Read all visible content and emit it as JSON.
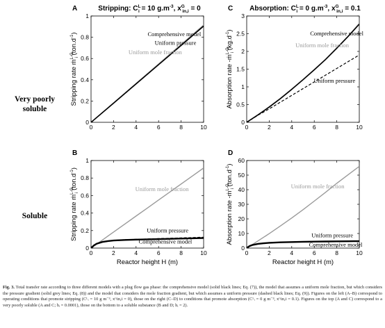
{
  "row_labels": {
    "top": [
      "Very poorly",
      "soluble"
    ],
    "bottom": [
      "Soluble"
    ]
  },
  "caption": {
    "lead": "Fig. 3.",
    "text": "Total transfer rate according to three different models with a plug flow gas phase: the comprehensive model (solid black lines; Eq. (7)), the model that assumes a uniform mole fraction, but which considers the pressure gradient (solid grey lines; Eq. (8)) and the model that considers the mole fraction gradient, but which assumes a uniform pressure (dashed black lines; Eq. (9)). Figures on the left (A–B) correspond to operating conditions that promote stripping (Cᴸᵢ = 10 g m⁻³, xᴳin,i = 0), those on the right (C–D) to conditions that promote absorption (Cᴸᵢ = 0 g m⁻³, xᴳin,i = 0.1). Figures on the top (A and C) correspond to a very poorly soluble (A and C; hᵢ = 0.0001), those on the bottom to a soluble substance (B and D; hᵢ = 2)."
  },
  "colors": {
    "comprehensive": "#000000",
    "mole_fraction": "#9a9a9a",
    "pressure": "#000000"
  },
  "chart_data": [
    {
      "id": "A",
      "type": "line",
      "letter": "A",
      "title_main": "Stripping: C",
      "title_sub1": "L",
      "title_sub1b": "i",
      "title_mid": " = 10 g.m",
      "title_exp": "-3",
      "title_mid2": ", x",
      "title_sub2": "G",
      "title_sub2b": "in,i",
      "title_end": " = 0",
      "xlabel": "",
      "ylabel": "Stripping rate  ṁ",
      "ylabel_sup": "L-G",
      "ylabel_sub": "i",
      "ylabel_unit": "  (ton.d",
      "ylabel_unit_exp": "-1",
      "ylabel_close": ")",
      "xlim": [
        0,
        10
      ],
      "ylim": [
        0,
        1
      ],
      "xticks": [
        0,
        2,
        4,
        6,
        8,
        10
      ],
      "yticks": [
        0,
        0.2,
        0.4,
        0.6,
        0.8,
        1
      ],
      "ytick_labels": [
        "0",
        "0.2",
        "0.4",
        "0.6",
        "0.8",
        "1"
      ],
      "x": [
        0,
        2,
        4,
        6,
        8,
        10
      ],
      "series": [
        {
          "name": "Uniform mole fraction",
          "style": "grey-solid",
          "values": [
            0,
            0.183,
            0.366,
            0.549,
            0.732,
            0.915
          ]
        },
        {
          "name": "Comprehensive model",
          "style": "black-solid",
          "values": [
            0,
            0.18,
            0.361,
            0.542,
            0.723,
            0.905
          ]
        },
        {
          "name": "Uniform pressure",
          "style": "black-dashed",
          "values": [
            0,
            0.18,
            0.361,
            0.542,
            0.723,
            0.905
          ]
        }
      ],
      "annotations": [
        {
          "text": "Comprehensive model",
          "color": "black",
          "x": 7.4,
          "y": 0.81
        },
        {
          "text": "Uniform pressure",
          "color": "black",
          "x": 7.5,
          "y": 0.73
        },
        {
          "text": "Uniform mole fraction",
          "color": "grey",
          "x": 5.7,
          "y": 0.64
        }
      ]
    },
    {
      "id": "C",
      "type": "line",
      "letter": "C",
      "title_main": "Absorption: C",
      "title_sub1": "L",
      "title_sub1b": "i",
      "title_mid": " = 0 g.m",
      "title_exp": "-3",
      "title_mid2": ", x",
      "title_sub2": "G",
      "title_sub2b": "in,i",
      "title_end": " = 0.1",
      "xlabel": "",
      "ylabel": "Absorption rate  -ṁ",
      "ylabel_sup": "L-G",
      "ylabel_sub": "i",
      "ylabel_unit": "  (kg.d",
      "ylabel_unit_exp": "-1",
      "ylabel_close": ")",
      "xlim": [
        0,
        10
      ],
      "ylim": [
        0,
        3
      ],
      "xticks": [
        0,
        2,
        4,
        6,
        8,
        10
      ],
      "yticks": [
        0,
        0.5,
        1,
        1.5,
        2,
        2.5,
        3
      ],
      "ytick_labels": [
        "0",
        "0.5",
        "1",
        "1.5",
        "2",
        "2.5",
        "3"
      ],
      "x": [
        0,
        1,
        2,
        3,
        4,
        5,
        6,
        7,
        8,
        9,
        10
      ],
      "series": [
        {
          "name": "Uniform mole fraction",
          "style": "grey-solid",
          "values": [
            0,
            0.21,
            0.44,
            0.68,
            0.94,
            1.21,
            1.49,
            1.78,
            2.1,
            2.43,
            2.79
          ]
        },
        {
          "name": "Comprehensive model",
          "style": "black-solid",
          "values": [
            0,
            0.21,
            0.43,
            0.67,
            0.93,
            1.2,
            1.48,
            1.77,
            2.09,
            2.42,
            2.77
          ]
        },
        {
          "name": "Uniform pressure",
          "style": "black-dashed",
          "values": [
            0,
            0.2,
            0.38,
            0.57,
            0.76,
            0.95,
            1.14,
            1.33,
            1.52,
            1.71,
            1.9
          ]
        }
      ],
      "annotations": [
        {
          "text": "Comprehensive model",
          "color": "black",
          "x": 8.0,
          "y": 2.45
        },
        {
          "text": "Uniform mole fraction",
          "color": "grey",
          "x": 6.7,
          "y": 2.12
        },
        {
          "text": "Uniform pressure",
          "color": "black",
          "x": 7.8,
          "y": 1.12
        }
      ]
    },
    {
      "id": "B",
      "type": "line",
      "letter": "B",
      "xlabel": "Reactor height H (m)",
      "ylabel": "Stripping rate  ṁ",
      "ylabel_sup": "L-G",
      "ylabel_sub": "i",
      "ylabel_unit": "  (ton.d",
      "ylabel_unit_exp": "-1",
      "ylabel_close": ")",
      "xlim": [
        0,
        10
      ],
      "ylim": [
        0,
        1
      ],
      "xticks": [
        0,
        2,
        4,
        6,
        8,
        10
      ],
      "yticks": [
        0,
        0.2,
        0.4,
        0.6,
        0.8,
        1
      ],
      "ytick_labels": [
        "0",
        "0.2",
        "0.4",
        "0.6",
        "0.8",
        "1"
      ],
      "x": [
        0,
        0.25,
        0.5,
        1,
        1.5,
        2,
        3,
        4,
        5,
        6,
        7,
        8,
        9,
        10
      ],
      "series": [
        {
          "name": "Uniform mole fraction",
          "style": "grey-solid",
          "values": [
            0,
            0.023,
            0.046,
            0.091,
            0.137,
            0.183,
            0.274,
            0.366,
            0.457,
            0.549,
            0.64,
            0.732,
            0.823,
            0.915
          ]
        },
        {
          "name": "Comprehensive model",
          "style": "black-solid",
          "values": [
            0,
            0.03,
            0.05,
            0.07,
            0.08,
            0.087,
            0.093,
            0.097,
            0.1,
            0.103,
            0.106,
            0.109,
            0.112,
            0.115
          ]
        },
        {
          "name": "Uniform pressure",
          "style": "black-dashed",
          "values": [
            0,
            0.03,
            0.05,
            0.072,
            0.082,
            0.089,
            0.096,
            0.1,
            0.104,
            0.108,
            0.112,
            0.116,
            0.12,
            0.124
          ]
        }
      ],
      "annotations": [
        {
          "text": "Uniform mole fraction",
          "color": "grey",
          "x": 6.3,
          "y": 0.65
        },
        {
          "text": "Uniform pressure",
          "color": "black",
          "x": 6.8,
          "y": 0.18
        },
        {
          "text": "Comprehensive model",
          "color": "black",
          "x": 6.6,
          "y": 0.05
        }
      ]
    },
    {
      "id": "D",
      "type": "line",
      "letter": "D",
      "xlabel": "Reactor height H (m)",
      "ylabel": "Absorption rate  -ṁ",
      "ylabel_sup": "L-G",
      "ylabel_sub": "i",
      "ylabel_unit": "  (ton.d",
      "ylabel_unit_exp": "-1",
      "ylabel_close": ")",
      "xlim": [
        0,
        10
      ],
      "ylim": [
        0,
        60
      ],
      "xticks": [
        0,
        2,
        4,
        6,
        8,
        10
      ],
      "yticks": [
        0,
        10,
        20,
        30,
        40,
        50,
        60
      ],
      "ytick_labels": [
        "0",
        "10",
        "20",
        "30",
        "40",
        "50",
        "60"
      ],
      "x": [
        0,
        0.25,
        0.5,
        1,
        1.5,
        2,
        3,
        4,
        5,
        6,
        7,
        8,
        9,
        10
      ],
      "series": [
        {
          "name": "Uniform mole fraction",
          "style": "grey-solid",
          "values": [
            0,
            1.2,
            2.4,
            4.9,
            7.4,
            9.9,
            15.2,
            20.6,
            26.3,
            32.2,
            38.2,
            44.4,
            50.2,
            56.0
          ]
        },
        {
          "name": "Comprehensive model",
          "style": "black-solid",
          "values": [
            0,
            1.4,
            2.1,
            2.9,
            3.3,
            3.6,
            3.95,
            4.15,
            4.3,
            4.42,
            4.52,
            4.6,
            4.68,
            4.75
          ]
        },
        {
          "name": "Uniform pressure",
          "style": "black-dashed",
          "values": [
            0,
            1.4,
            2.1,
            2.9,
            3.3,
            3.6,
            3.95,
            4.15,
            4.3,
            4.42,
            4.52,
            4.6,
            4.68,
            4.75
          ]
        }
      ],
      "annotations": [
        {
          "text": "Uniform mole fraction",
          "color": "grey",
          "x": 6.3,
          "y": 41
        },
        {
          "text": "Uniform pressure",
          "color": "black",
          "x": 7.6,
          "y": 7.3
        },
        {
          "text": "Comprehensive model",
          "color": "black",
          "x": 7.9,
          "y": 0.9
        }
      ]
    }
  ]
}
